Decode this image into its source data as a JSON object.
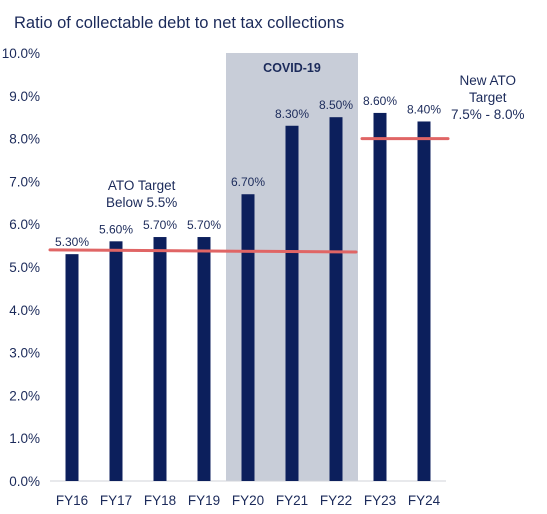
{
  "chart_data": {
    "type": "bar",
    "title": "Ratio of collectable debt to net tax collections",
    "categories": [
      "FY16",
      "FY17",
      "FY18",
      "FY19",
      "FY20",
      "FY21",
      "FY22",
      "FY23",
      "FY24"
    ],
    "values": [
      5.3,
      5.6,
      5.7,
      5.7,
      6.7,
      8.3,
      8.5,
      8.6,
      8.4
    ],
    "data_labels": [
      "5.30%",
      "5.60%",
      "5.70%",
      "5.70%",
      "6.70%",
      "8.30%",
      "8.50%",
      "8.60%",
      "8.40%"
    ],
    "ylim": [
      0,
      10
    ],
    "yticks": [
      "0.0%",
      "1.0%",
      "2.0%",
      "3.0%",
      "4.0%",
      "5.0%",
      "6.0%",
      "7.0%",
      "8.0%",
      "9.0%",
      "10.0%"
    ],
    "xlabel": "",
    "ylabel": "",
    "grid": false,
    "colors": {
      "bar": "#0c1f5c",
      "target_line": "#e06565",
      "shade": "#c8cdd8",
      "text": "#1b2a5a"
    },
    "shaded_region": {
      "label": "COVID-19",
      "from": "FY20",
      "to": "FY22"
    },
    "reference_lines": [
      {
        "label_lines": [
          "ATO Target",
          "Below 5.5%"
        ],
        "from": "FY16",
        "to": "FY22",
        "y_start": 5.4,
        "y_end": 5.35
      },
      {
        "label_lines": [
          "New ATO",
          "Target",
          "7.5% - 8.0%"
        ],
        "from": "FY23",
        "to": "FY24",
        "y_start": 8.0,
        "y_end": 8.0
      }
    ]
  }
}
